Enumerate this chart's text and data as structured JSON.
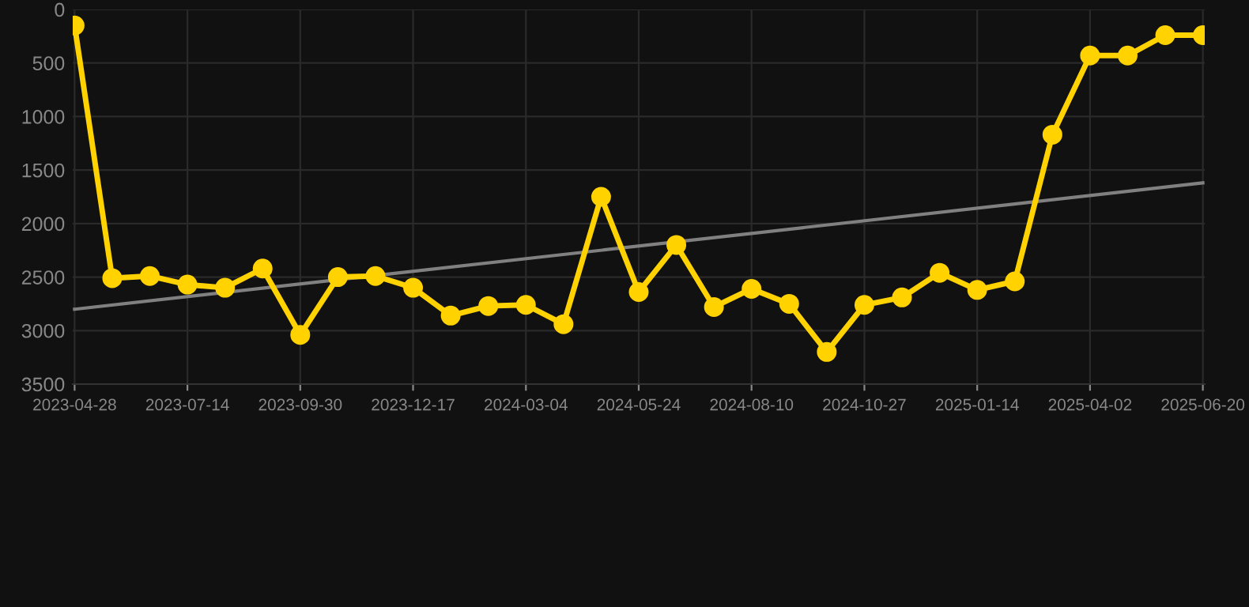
{
  "chart_data": {
    "type": "line",
    "categories": [
      "2023-04-28",
      null,
      null,
      "2023-07-14",
      null,
      null,
      "2023-09-30",
      null,
      null,
      "2023-12-17",
      null,
      null,
      "2024-03-04",
      null,
      null,
      "2024-05-24",
      null,
      null,
      "2024-08-10",
      null,
      null,
      "2024-10-27",
      null,
      null,
      "2025-01-14",
      null,
      null,
      "2025-04-02",
      null,
      null,
      "2025-06-20"
    ],
    "series": [
      {
        "color": "#ffd200",
        "marker": "circle",
        "values": [
          150,
          2510,
          2490,
          2570,
          2600,
          2420,
          3040,
          2500,
          2490,
          2600,
          2860,
          2770,
          2760,
          2940,
          1750,
          2640,
          2200,
          2780,
          2610,
          2750,
          3200,
          2760,
          2690,
          2460,
          2620,
          2540,
          1170,
          430,
          430,
          240,
          240
        ]
      },
      {
        "type": "line",
        "color": "#808080",
        "marker": "none",
        "values": [
          2800,
          null,
          null,
          null,
          null,
          null,
          null,
          null,
          null,
          null,
          null,
          null,
          null,
          null,
          null,
          null,
          null,
          null,
          null,
          null,
          null,
          null,
          null,
          null,
          null,
          null,
          null,
          null,
          null,
          null,
          1620
        ]
      }
    ],
    "ylim": [
      3500,
      0
    ],
    "yticks": [
      0,
      500,
      1000,
      1500,
      2000,
      2500,
      3000,
      3500
    ],
    "grid": true,
    "line_style": "solid"
  }
}
